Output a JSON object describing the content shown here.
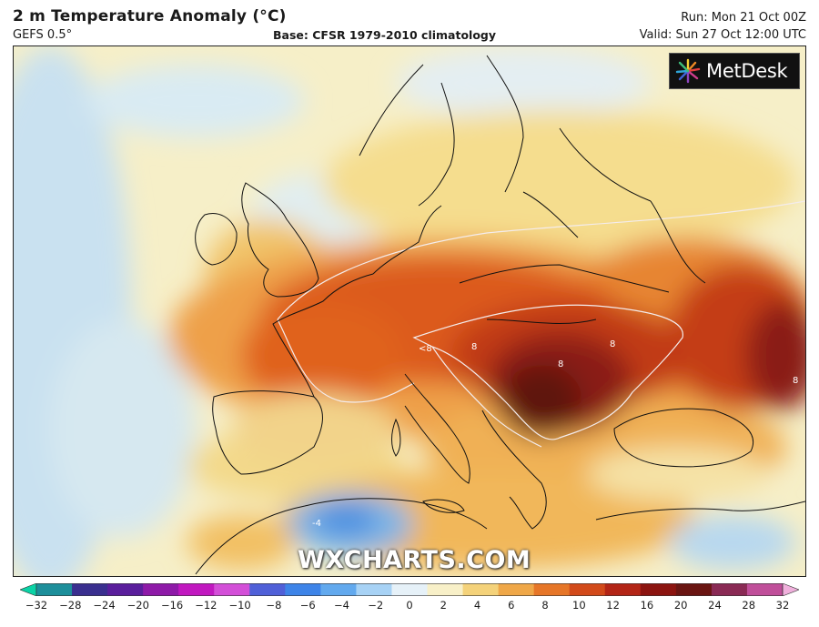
{
  "header": {
    "title": "2 m Temperature Anomaly (°C)",
    "model": "GEFS 0.5°",
    "base": "Base: CFSR 1979-2010 climatology",
    "run": "Run: Mon 21 Oct 00Z",
    "valid": "Valid: Sun 27 Oct 12:00 UTC"
  },
  "logo": {
    "text": "MetDesk",
    "icon": "starburst-logo-icon"
  },
  "watermark": "WXCHARTS.COM",
  "map": {
    "region": "Europe",
    "contour_labels": [
      "8",
      "<8",
      "8",
      "8",
      "8",
      "-4"
    ]
  },
  "colorbar": {
    "labels": [
      "−32",
      "−28",
      "−24",
      "−20",
      "−16",
      "−12",
      "−10",
      "−8",
      "−6",
      "−4",
      "−2",
      "0",
      "2",
      "4",
      "6",
      "8",
      "10",
      "12",
      "16",
      "20",
      "24",
      "28",
      "32"
    ],
    "colors": [
      "#0ad3a6",
      "#1d8f9b",
      "#3a2f8f",
      "#5a1e9c",
      "#8e1aa8",
      "#c118c0",
      "#d34fd8",
      "#5060d8",
      "#3e84e8",
      "#62a9ee",
      "#a7d2f5",
      "#e6f1f8",
      "#f8f0c8",
      "#f4d27a",
      "#efa748",
      "#e67628",
      "#d24a1a",
      "#b32516",
      "#8c1410",
      "#6a1512",
      "#8a2a55",
      "#c04f9a",
      "#f0b0dc"
    ],
    "colors_note": "blue-green left end, pink right end"
  }
}
